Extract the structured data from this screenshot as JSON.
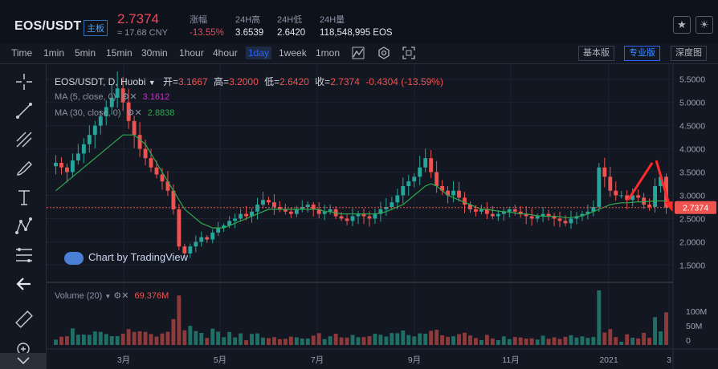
{
  "header": {
    "pair": "EOS/USDT",
    "board": "主板",
    "price": "2.7374",
    "cny": "≈ 17.68 CNY",
    "stats": [
      {
        "label": "涨幅",
        "value": "-13.55%"
      },
      {
        "label": "24H高",
        "value": "3.6539"
      },
      {
        "label": "24H低",
        "value": "2.6420"
      },
      {
        "label": "24H量",
        "value": "118,548,995 EOS"
      }
    ],
    "icons": [
      "star-icon",
      "sun-icon"
    ]
  },
  "toolbar": {
    "timeframes": [
      "Time",
      "1min",
      "5min",
      "15min",
      "30min",
      "1hour",
      "4hour",
      "1day",
      "1week",
      "1mon"
    ],
    "active_timeframe": "1day",
    "modes": [
      "基本版",
      "专业版",
      "深度图"
    ],
    "active_mode": "专业版"
  },
  "legend": {
    "symbol": "EOS/USDT, D, Huobi",
    "open_label": "开=",
    "open": "3.1667",
    "high_label": "高=",
    "high": "3.2000",
    "low_label": "低=",
    "low": "2.6420",
    "close_label": "收=",
    "close": "2.7374",
    "change": "-0.4304 (-13.59%)",
    "ma5_label": "MA (5, close, 0)",
    "ma5_value": "3.1612",
    "ma30_label": "MA (30, close, 0)",
    "ma30_value": "2.8838",
    "volume_label": "Volume (20)",
    "volume_value": "69.376M",
    "watermark": "Chart by TradingView"
  },
  "colors": {
    "up": "#26a69a",
    "down": "#ef5350",
    "ma5": "#c433c4",
    "ma30": "#2fa84f",
    "accent": "#2962ff",
    "price_tag": "#ef5350"
  },
  "chart_data": {
    "type": "candlestick",
    "price_axis": [
      "5.5000",
      "5.0000",
      "4.5000",
      "4.0000",
      "3.5000",
      "3.0000",
      "2.5000",
      "2.0000",
      "1.5000"
    ],
    "last_price_tag": "2.7374",
    "volume_axis": [
      "100M",
      "50M",
      "0"
    ],
    "x_ticks": [
      "3月",
      "5月",
      "7月",
      "9月",
      "11月",
      "2021",
      "3"
    ],
    "ylim": [
      1.3,
      5.65
    ],
    "close_series": [
      3.7,
      3.6,
      3.5,
      3.75,
      3.9,
      4.1,
      4.3,
      4.5,
      4.7,
      4.9,
      5.1,
      5.3,
      5.0,
      4.6,
      4.3,
      4.0,
      3.8,
      3.6,
      3.45,
      3.3,
      3.1,
      2.7,
      1.9,
      1.75,
      1.9,
      2.0,
      2.1,
      2.05,
      2.2,
      2.3,
      2.35,
      2.45,
      2.5,
      2.6,
      2.55,
      2.65,
      2.8,
      2.9,
      2.85,
      2.75,
      2.7,
      2.65,
      2.6,
      2.7,
      2.75,
      2.8,
      2.7,
      2.6,
      2.65,
      2.7,
      2.55,
      2.5,
      2.45,
      2.55,
      2.6,
      2.55,
      2.5,
      2.6,
      2.7,
      2.75,
      2.85,
      3.0,
      3.2,
      3.3,
      3.4,
      3.6,
      3.8,
      3.5,
      3.2,
      3.1,
      3.0,
      3.1,
      2.95,
      2.8,
      2.7,
      2.65,
      2.7,
      2.6,
      2.55,
      2.6,
      2.65,
      2.7,
      2.65,
      2.6,
      2.55,
      2.5,
      2.55,
      2.6,
      2.55,
      2.5,
      2.45,
      2.4,
      2.5,
      2.55,
      2.6,
      2.65,
      2.75,
      3.6,
      3.4,
      3.1,
      3.0,
      3.0,
      2.9,
      3.0,
      2.95,
      2.8,
      2.75,
      3.2,
      3.4,
      2.74
    ],
    "ma5_series": [
      3.6,
      3.6,
      3.6,
      3.6,
      3.7,
      3.9,
      4.1,
      4.3,
      4.5,
      4.7,
      4.9,
      5.0,
      5.0,
      4.8,
      4.6,
      4.3,
      4.1,
      3.9,
      3.6,
      3.4,
      3.2,
      2.9,
      2.5,
      2.2,
      2.1,
      2.0,
      2.0,
      2.1,
      2.2,
      2.3,
      2.4,
      2.5,
      2.6,
      2.6,
      2.6,
      2.7,
      2.8,
      2.8,
      2.8,
      2.7,
      2.7,
      2.7,
      2.7,
      2.7,
      2.7,
      2.7,
      2.6,
      2.6,
      2.6,
      2.6,
      2.5,
      2.5,
      2.5,
      2.5,
      2.6,
      2.5,
      2.5,
      2.6,
      2.7,
      2.8,
      2.9,
      3.0,
      3.2,
      3.3,
      3.5,
      3.6,
      3.6,
      3.5,
      3.3,
      3.1,
      3.0,
      3.0,
      2.9,
      2.8,
      2.7,
      2.7,
      2.6,
      2.6,
      2.6,
      2.6,
      2.6,
      2.6,
      2.6,
      2.6,
      2.5,
      2.5,
      2.5,
      2.5,
      2.5,
      2.5,
      2.4,
      2.5,
      2.5,
      2.6,
      2.6,
      2.7,
      3.0,
      3.2,
      3.2,
      3.1,
      3.0,
      3.0,
      2.9,
      2.9,
      2.8,
      2.9,
      3.0,
      3.16
    ],
    "ma30_series": [
      3.1,
      3.2,
      3.3,
      3.4,
      3.5,
      3.6,
      3.7,
      3.8,
      3.9,
      4.0,
      4.1,
      4.2,
      4.3,
      4.3,
      4.3,
      4.2,
      4.1,
      3.9,
      3.7,
      3.5,
      3.3,
      3.1,
      2.9,
      2.7,
      2.6,
      2.5,
      2.4,
      2.35,
      2.3,
      2.3,
      2.3,
      2.35,
      2.4,
      2.45,
      2.5,
      2.55,
      2.6,
      2.65,
      2.7,
      2.7,
      2.7,
      2.7,
      2.7,
      2.7,
      2.7,
      2.7,
      2.7,
      2.7,
      2.65,
      2.65,
      2.62,
      2.6,
      2.6,
      2.6,
      2.6,
      2.6,
      2.6,
      2.6,
      2.62,
      2.65,
      2.7,
      2.75,
      2.8,
      2.9,
      3.0,
      3.1,
      3.2,
      3.25,
      3.2,
      3.1,
      3.0,
      2.95,
      2.9,
      2.85,
      2.8,
      2.75,
      2.7,
      2.7,
      2.68,
      2.66,
      2.65,
      2.64,
      2.62,
      2.6,
      2.6,
      2.58,
      2.56,
      2.55,
      2.55,
      2.55,
      2.54,
      2.52,
      2.52,
      2.54,
      2.56,
      2.6,
      2.65,
      2.7,
      2.75,
      2.8,
      2.82,
      2.84,
      2.84,
      2.85,
      2.86,
      2.86,
      2.87,
      2.88,
      2.88,
      2.88
    ]
  }
}
